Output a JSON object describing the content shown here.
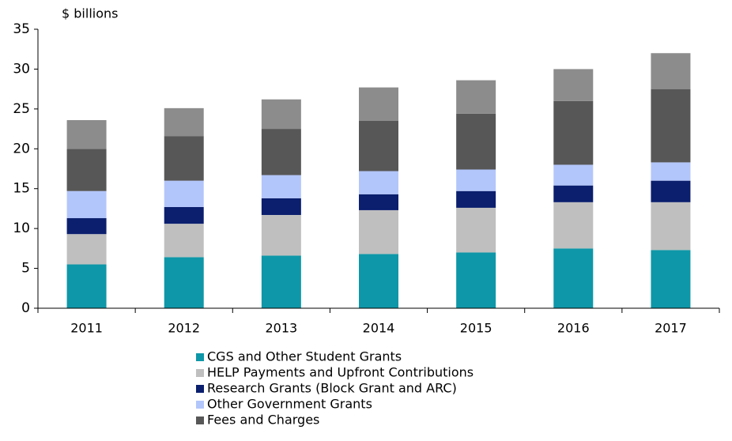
{
  "chart_data": {
    "type": "stacked_bar",
    "y_label": "$ billions",
    "categories": [
      "2011",
      "2012",
      "2013",
      "2014",
      "2015",
      "2016",
      "2017"
    ],
    "series": [
      {
        "name": "CGS and Other Student Grants",
        "color": "#0e97a8",
        "values": [
          5.5,
          6.4,
          6.6,
          6.8,
          7.0,
          7.5,
          7.3
        ]
      },
      {
        "name": "HELP Payments and Upfront Contributions",
        "color": "#bfbfbf",
        "values": [
          3.8,
          4.2,
          5.1,
          5.5,
          5.6,
          5.8,
          6.0
        ]
      },
      {
        "name": "Research Grants (Block Grant and ARC)",
        "color": "#0b1f6e",
        "values": [
          2.0,
          2.1,
          2.1,
          2.0,
          2.1,
          2.1,
          2.7
        ]
      },
      {
        "name": "Other Government Grants",
        "color": "#b3c6fb",
        "values": [
          3.4,
          3.3,
          2.9,
          2.9,
          2.7,
          2.6,
          2.3
        ]
      },
      {
        "name": "Fees and Charges",
        "color": "#575757",
        "values": [
          5.3,
          5.6,
          5.8,
          6.3,
          7.0,
          8.0,
          9.2
        ]
      },
      {
        "color": "#8c8c8c",
        "values": [
          3.6,
          3.5,
          3.7,
          4.2,
          4.2,
          4.0,
          4.5
        ]
      }
    ],
    "ylim": [
      0,
      35
    ],
    "yticks": [
      0,
      5,
      10,
      15,
      20,
      25,
      30,
      35
    ]
  }
}
